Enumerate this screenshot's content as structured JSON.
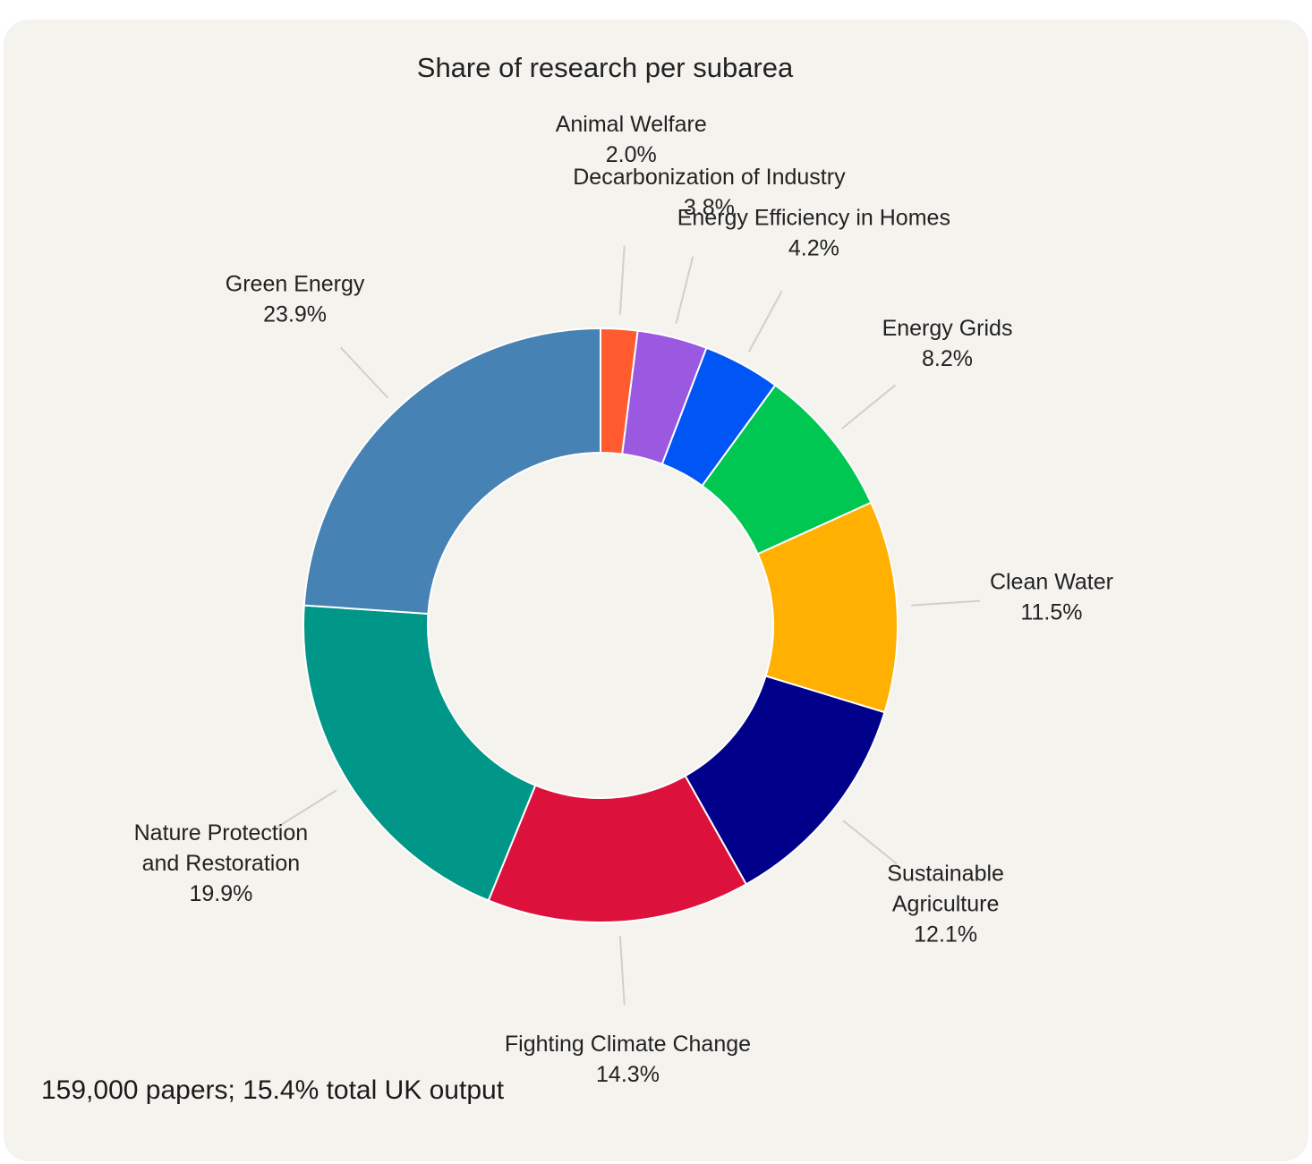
{
  "chart_data": {
    "type": "pie",
    "title": "Share of research per subarea",
    "hole": true,
    "slices": [
      {
        "label": "Animal Welfare",
        "value": 2.0,
        "value_label": "2.0%",
        "color": "#ff5b2e"
      },
      {
        "label": "Decarbonization of Industry",
        "value": 3.8,
        "value_label": "3.8%",
        "color": "#9b58e0"
      },
      {
        "label": "Energy Efficiency in Homes",
        "value": 4.2,
        "value_label": "4.2%",
        "color": "#0055f5"
      },
      {
        "label": "Energy Grids",
        "value": 8.2,
        "value_label": "8.2%",
        "color": "#00c752"
      },
      {
        "label": "Clean Water",
        "value": 11.5,
        "value_label": "11.5%",
        "color": "#ffb000"
      },
      {
        "label": "Sustainable Agriculture",
        "value": 12.1,
        "value_label": "12.1%",
        "color": "#00008b"
      },
      {
        "label": "Fighting Climate Change",
        "value": 14.3,
        "value_label": "14.3%",
        "color": "#dc123c"
      },
      {
        "label": "Nature Protection and Restoration",
        "value": 19.9,
        "value_label": "19.9%",
        "color": "#009688"
      },
      {
        "label": "Green Energy",
        "value": 23.9,
        "value_label": "23.9%",
        "color": "#4682b4"
      }
    ]
  },
  "footer": "159,000 papers; 15.4% total UK output",
  "colors": {
    "background": "#f5f3ee",
    "leader_line": "#cfcfcf"
  }
}
